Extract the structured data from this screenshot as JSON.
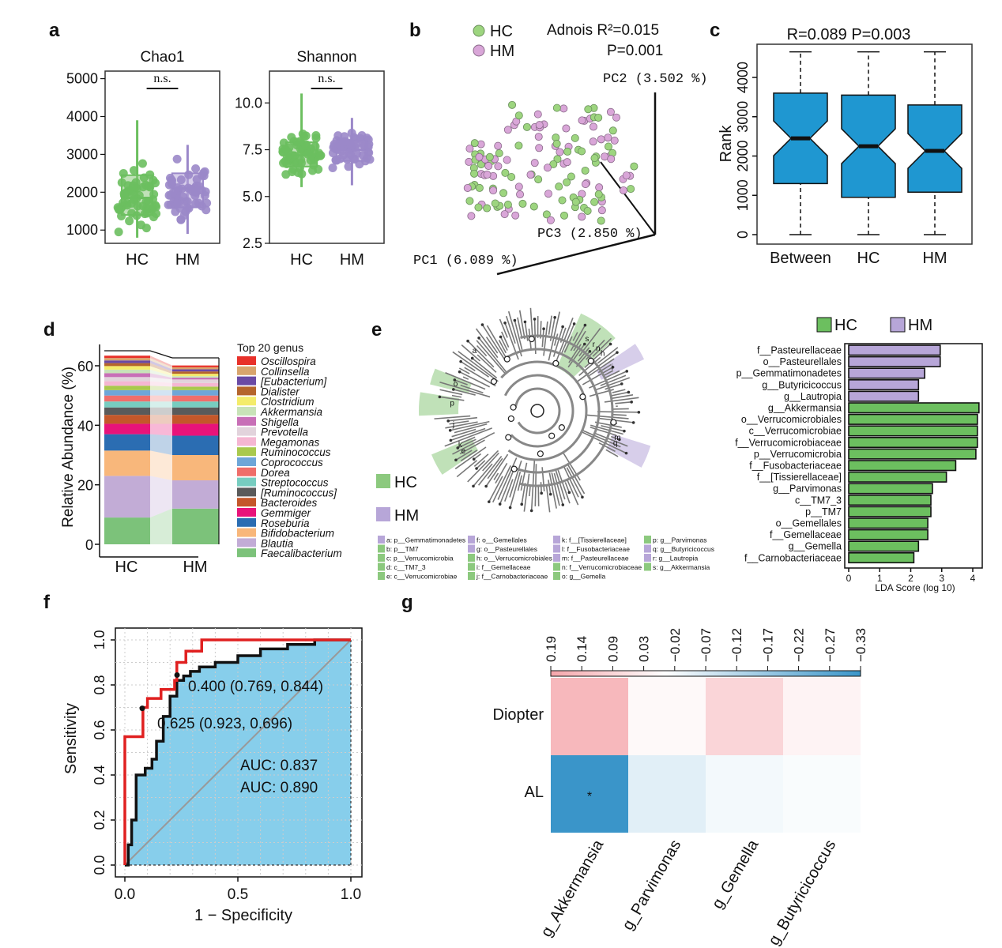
{
  "colors": {
    "hc": "#8cc97e",
    "hc_dark": "#6cbf5f",
    "hm": "#b7a6d8",
    "hm_dark": "#9b88c9",
    "hc_point_fill": "#9dd57f",
    "hm_point_fill": "#d9a6d8",
    "box_blue": "#1f97d1",
    "roc_fill": "#87ceeb",
    "red": "#e02020",
    "heat_pos": "#f5a6ab",
    "heat_neg": "#3a95c9"
  },
  "panels": {
    "a": {
      "label": "a",
      "plots": [
        {
          "title": "Chao1",
          "sig": "n.s.",
          "yticks": [
            "5000",
            "4000",
            "3000",
            "2000",
            "1000"
          ],
          "groups": [
            "HC",
            "HM"
          ]
        },
        {
          "title": "Shannon",
          "sig": "n.s.",
          "yticks": [
            "10.0",
            "7.5",
            "5.0",
            "2.5"
          ],
          "groups": [
            "HC",
            "HM"
          ]
        }
      ]
    },
    "b": {
      "label": "b",
      "legend": [
        "HC",
        "HM"
      ],
      "stat_line1": "Adnois  R²=0.015",
      "stat_line2": "P=0.001",
      "pc1": "PC1 (6.089 %)",
      "pc2": "PC2 (3.502 %)",
      "pc3": "PC3 (2.850 %)"
    },
    "c": {
      "label": "c",
      "title": "R=0.089  P=0.003",
      "ylabel": "Rank",
      "yticks": [
        "4000",
        "3000",
        "2000",
        "1000",
        "0"
      ],
      "groups": [
        "Between",
        "HC",
        "HM"
      ]
    },
    "d": {
      "label": "d",
      "ylabel": "Relative Abundance (%)",
      "yticks": [
        "60",
        "40",
        "20",
        "0"
      ],
      "groups": [
        "HC",
        "HM"
      ],
      "legend_title": "Top 20 genus",
      "genera": [
        {
          "name": "Oscillospira",
          "color": "#e8312a"
        },
        {
          "name": "Collinsella",
          "color": "#d8a56e"
        },
        {
          "name": "[Eubacterium]",
          "color": "#6a4aa5"
        },
        {
          "name": "Dialister",
          "color": "#b5652c"
        },
        {
          "name": "Clostridium",
          "color": "#f4ec6b"
        },
        {
          "name": "Akkermansia",
          "color": "#c8e3b8"
        },
        {
          "name": "Shigella",
          "color": "#c86fb7"
        },
        {
          "name": "Prevotella",
          "color": "#e2d3dc"
        },
        {
          "name": "Megamonas",
          "color": "#f5b6d2"
        },
        {
          "name": "Ruminococcus",
          "color": "#a9c94d"
        },
        {
          "name": "Coprococcus",
          "color": "#6ea6d8"
        },
        {
          "name": "Dorea",
          "color": "#ef6e6a"
        },
        {
          "name": "Streptococcus",
          "color": "#77cdc0"
        },
        {
          "name": "[Ruminococcus]",
          "color": "#5a5a5a"
        },
        {
          "name": "Bacteroides",
          "color": "#c4572a"
        },
        {
          "name": "Gemmiger",
          "color": "#e8137a"
        },
        {
          "name": "Roseburia",
          "color": "#2b6db2"
        },
        {
          "name": "Bifidobacterium",
          "color": "#f8b77b"
        },
        {
          "name": "Blautia",
          "color": "#c2acd6"
        },
        {
          "name": "Faecalibacterium",
          "color": "#7cc27a"
        }
      ]
    },
    "e": {
      "label": "e",
      "legend": [
        "HC",
        "HM"
      ],
      "key_rows": [
        [
          "a: p__Gemmatimonadetes",
          "f: o__Gemellales",
          "k: f__[Tissierellaceae]",
          "p: g__Parvimonas"
        ],
        [
          "b: p__TM7",
          "g: o__Pasteurellales",
          "l: f__Fusobacteriaceae",
          "q: g__Butyricicoccus"
        ],
        [
          "c: p__Verrucomicrobia",
          "h: o__Verrucomicrobiales",
          "m: f__Pasteurellaceae",
          "r: g__Lautropia"
        ],
        [
          "d: c__TM7_3",
          "i: f__Gemellaceae",
          "n: f__Verrucomicrobiaceae",
          "s: g__Akkermansia"
        ],
        [
          "e: c__Verrucomicrobiae",
          "j: f__Carnobacteriaceae",
          "o: g__Gemella",
          ""
        ]
      ],
      "key_groups": [
        [
          "hm",
          "hm",
          "hm",
          "hc"
        ],
        [
          "hc",
          "hm",
          "hm",
          "hm"
        ],
        [
          "hc",
          "hc",
          "hm",
          "hm"
        ],
        [
          "hc",
          "hc",
          "hc",
          "hc"
        ],
        [
          "hc",
          "hc",
          "hc",
          ""
        ]
      ],
      "clade_letters": [
        "s",
        "r",
        "n",
        "h",
        "o",
        "m",
        "e",
        "q",
        "i",
        "k",
        "p",
        "j",
        "a"
      ]
    },
    "lda": {
      "legend": [
        "HC",
        "HM"
      ],
      "xlabel": "LDA Score (log 10)",
      "xticks": [
        "0",
        "1",
        "2",
        "3",
        "4"
      ]
    },
    "f": {
      "label": "f",
      "xlabel": "1 − Specificity",
      "ylabel": "Sensitivity",
      "xticks": [
        "0.0",
        "0.5",
        "1.0"
      ],
      "yticks": [
        "1.0",
        "0.8",
        "0.6",
        "0.4",
        "0.2",
        "0.0"
      ],
      "black_point_label": "0.400 (0.769, 0.844)",
      "red_point_label": "0.625 (0.923, 0.696)",
      "auc_black": "AUC: 0.837",
      "auc_red": "AUC: 0.890"
    },
    "g": {
      "label": "g",
      "scale_ticks": [
        "0.19",
        "0.14",
        "0.09",
        "0.03",
        "−0.02",
        "−0.07",
        "−0.12",
        "−0.17",
        "−0.22",
        "−0.27",
        "−0.33"
      ],
      "rows": [
        "Diopter",
        "AL"
      ],
      "cols": [
        "g_Akkermansia",
        "g_Parvimonas",
        "g_Gemella",
        "g_Butyricicoccus"
      ],
      "star": "*"
    }
  },
  "chart_data": [
    {
      "type": "box",
      "title": "Chao1",
      "categories": [
        "HC",
        "HM"
      ],
      "ylim": [
        800,
        5000
      ],
      "series": [
        {
          "name": "HC",
          "median": 1850,
          "q1": 1400,
          "q3": 2450,
          "whisker_low": 800,
          "whisker_high": 3900
        },
        {
          "name": "HM",
          "median": 2100,
          "q1": 1600,
          "q3": 2500,
          "whisker_low": 900,
          "whisker_high": 3250
        }
      ],
      "annotation": "n.s."
    },
    {
      "type": "box",
      "title": "Shannon",
      "categories": [
        "HC",
        "HM"
      ],
      "ylim": [
        2.5,
        11.5
      ],
      "series": [
        {
          "name": "HC",
          "median": 7.2,
          "q1": 6.6,
          "q3": 7.9,
          "whisker_low": 5.5,
          "whisker_high": 10.5
        },
        {
          "name": "HM",
          "median": 7.5,
          "q1": 6.9,
          "q3": 8.0,
          "whisker_low": 5.6,
          "whisker_high": 9.2
        }
      ],
      "annotation": "n.s."
    },
    {
      "type": "scatter",
      "title": "Adnois",
      "series": [
        {
          "name": "HC"
        },
        {
          "name": "HM"
        }
      ],
      "annotations": [
        "R²=0.015",
        "P=0.001"
      ]
    },
    {
      "type": "box",
      "title": "R=0.089  P=0.003",
      "ylabel": "Rank",
      "categories": [
        "Between",
        "HC",
        "HM"
      ],
      "ylim": [
        0,
        4700
      ],
      "series": [
        {
          "name": "Between",
          "median": 2450,
          "q1": 1300,
          "q3": 3600,
          "whisker_low": 0,
          "whisker_high": 4650
        },
        {
          "name": "HC",
          "median": 2250,
          "q1": 950,
          "q3": 3550,
          "whisker_low": 0,
          "whisker_high": 4650
        },
        {
          "name": "HM",
          "median": 2130,
          "q1": 1080,
          "q3": 3300,
          "whisker_low": 0,
          "whisker_high": 4650
        }
      ]
    },
    {
      "type": "bar",
      "stacked": true,
      "ylabel": "Relative Abundance (%)",
      "categories": [
        "HC",
        "HM"
      ],
      "ylim": [
        0,
        66
      ],
      "series": [
        {
          "name": "Faecalibacterium",
          "values": [
            9,
            12
          ]
        },
        {
          "name": "Blautia",
          "values": [
            14,
            9.5
          ]
        },
        {
          "name": "Bifidobacterium",
          "values": [
            8.5,
            8.5
          ]
        },
        {
          "name": "Roseburia",
          "values": [
            5.5,
            6.5
          ]
        },
        {
          "name": "Gemmiger",
          "values": [
            3.5,
            4
          ]
        },
        {
          "name": "Bacteroides",
          "values": [
            3,
            3
          ]
        },
        {
          "name": "[Ruminococcus]",
          "values": [
            2.5,
            2.5
          ]
        },
        {
          "name": "Streptococcus",
          "values": [
            2,
            2
          ]
        },
        {
          "name": "Dorea",
          "values": [
            2,
            2
          ]
        },
        {
          "name": "Coprococcus",
          "values": [
            1.8,
            1.8
          ]
        },
        {
          "name": "Ruminococcus",
          "values": [
            1.5,
            1.2
          ]
        },
        {
          "name": "Megamonas",
          "values": [
            1.5,
            1.2
          ]
        },
        {
          "name": "Prevotella",
          "values": [
            1.4,
            1.2
          ]
        },
        {
          "name": "Shigella",
          "values": [
            1.3,
            0.6
          ]
        },
        {
          "name": "Akkermansia",
          "values": [
            1.2,
            0.5
          ]
        },
        {
          "name": "Clostridium",
          "values": [
            1.2,
            0.8
          ]
        },
        {
          "name": "Dialister",
          "values": [
            1,
            0.8
          ]
        },
        {
          "name": "[Eubacterium]",
          "values": [
            0.9,
            0.7
          ]
        },
        {
          "name": "Collinsella",
          "values": [
            0.8,
            0.7
          ]
        },
        {
          "name": "Oscillospira",
          "values": [
            0.8,
            0.6
          ]
        }
      ]
    },
    {
      "type": "bar",
      "orientation": "horizontal",
      "xlabel": "LDA Score (log 10)",
      "xlim": [
        0,
        4.3
      ],
      "categories": [
        "f__Pasteurellaceae",
        "o__Pasteurellales",
        "p__Gemmatimonadetes",
        "g__Butyricicoccus",
        "g__Lautropia",
        "g__Akkermansia",
        "o__Verrucomicrobiales",
        "c__Verrucomicrobiae",
        "f__Verrucomicrobiaceae",
        "p__Verrucomicrobia",
        "f__Fusobacteriaceae",
        "f__[Tissierellaceae]",
        "g__Parvimonas",
        "c__TM7_3",
        "p__TM7",
        "o__Gemellales",
        "f__Gemellaceae",
        "g__Gemella",
        "f__Carnobacteriaceae"
      ],
      "values": [
        2.95,
        2.95,
        2.45,
        2.25,
        2.25,
        4.2,
        4.15,
        4.15,
        4.15,
        4.1,
        3.45,
        3.15,
        2.7,
        2.65,
        2.65,
        2.55,
        2.55,
        2.25,
        2.1
      ],
      "groups": [
        "HM",
        "HM",
        "HM",
        "HM",
        "HM",
        "HC",
        "HC",
        "HC",
        "HC",
        "HC",
        "HC",
        "HC",
        "HC",
        "HC",
        "HC",
        "HC",
        "HC",
        "HC",
        "HC"
      ]
    },
    {
      "type": "line",
      "xlabel": "1 − Specificity",
      "ylabel": "Sensitivity",
      "xlim": [
        0,
        1
      ],
      "ylim": [
        0,
        1
      ],
      "series": [
        {
          "name": "AUC: 0.837",
          "color": "#111111",
          "x": [
            0,
            0.015,
            0.015,
            0.03,
            0.03,
            0.05,
            0.05,
            0.09,
            0.09,
            0.12,
            0.12,
            0.14,
            0.14,
            0.17,
            0.17,
            0.2,
            0.2,
            0.23,
            0.23,
            0.26,
            0.26,
            0.29,
            0.29,
            0.33,
            0.33,
            0.4,
            0.4,
            0.5,
            0.5,
            0.6,
            0.6,
            0.72,
            0.72,
            0.84,
            0.84,
            1
          ],
          "y": [
            0,
            0,
            0.09,
            0.09,
            0.2,
            0.2,
            0.4,
            0.4,
            0.43,
            0.43,
            0.47,
            0.47,
            0.55,
            0.55,
            0.66,
            0.66,
            0.75,
            0.75,
            0.82,
            0.82,
            0.84,
            0.84,
            0.86,
            0.86,
            0.88,
            0.88,
            0.9,
            0.9,
            0.93,
            0.93,
            0.96,
            0.96,
            0.98,
            0.98,
            1,
            1
          ]
        },
        {
          "name": "AUC: 0.890",
          "color": "#e02020",
          "x": [
            0,
            0,
            0.08,
            0.08,
            0.1,
            0.1,
            0.16,
            0.16,
            0.22,
            0.22,
            0.23,
            0.23,
            0.27,
            0.27,
            0.34,
            0.34,
            0.57,
            0.57,
            1
          ],
          "y": [
            0,
            0.57,
            0.57,
            0.7,
            0.7,
            0.74,
            0.74,
            0.78,
            0.78,
            0.82,
            0.82,
            0.9,
            0.9,
            0.95,
            0.95,
            1,
            1,
            1,
            1
          ]
        }
      ],
      "annotations": [
        "0.400 (0.769, 0.844)",
        "0.625 (0.923, 0.696)"
      ]
    },
    {
      "type": "heatmap",
      "rows": [
        "Diopter",
        "AL"
      ],
      "cols": [
        "g_Akkermansia",
        "g_Parvimonas",
        "g_Gemella",
        "g_Butyricicoccus"
      ],
      "values": [
        [
          0.12,
          0.01,
          0.07,
          0.02
        ],
        [
          -0.33,
          -0.05,
          -0.02,
          -0.01
        ]
      ],
      "scale": [
        0.19,
        -0.33
      ],
      "significant": [
        [
          false,
          false,
          false,
          false
        ],
        [
          true,
          false,
          false,
          false
        ]
      ]
    }
  ]
}
